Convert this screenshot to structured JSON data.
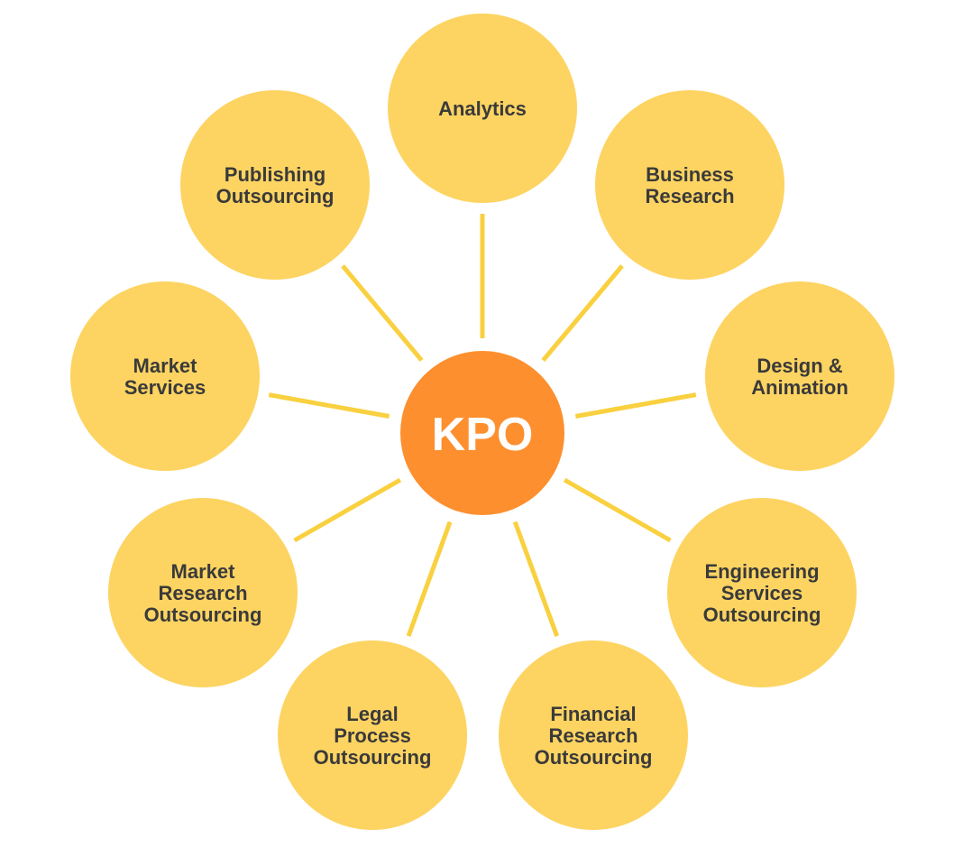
{
  "colors": {
    "node_fill": "#FDD462",
    "center_fill": "#FD8F2E",
    "connector": "#F9D03F",
    "node_text": "#3A3A3A",
    "center_text": "#FFFFFF"
  },
  "center": {
    "label": "KPO"
  },
  "nodes": [
    {
      "id": "analytics",
      "lines": [
        "Analytics"
      ]
    },
    {
      "id": "business-research",
      "lines": [
        "Business",
        "Research"
      ]
    },
    {
      "id": "design-animation",
      "lines": [
        "Design &",
        "Animation"
      ]
    },
    {
      "id": "engineering-services-outsourcing",
      "lines": [
        "Engineering",
        "Services",
        "Outsourcing"
      ]
    },
    {
      "id": "financial-research-outsourcing",
      "lines": [
        "Financial",
        "Research",
        "Outsourcing"
      ]
    },
    {
      "id": "legal-process-outsourcing",
      "lines": [
        "Legal",
        "Process",
        "Outsourcing"
      ]
    },
    {
      "id": "market-research-outsourcing",
      "lines": [
        "Market",
        "Research",
        "Outsourcing"
      ]
    },
    {
      "id": "market-services",
      "lines": [
        "Market",
        "Services"
      ]
    },
    {
      "id": "publishing-outsourcing",
      "lines": [
        "Publishing",
        "Outsourcing"
      ]
    }
  ]
}
